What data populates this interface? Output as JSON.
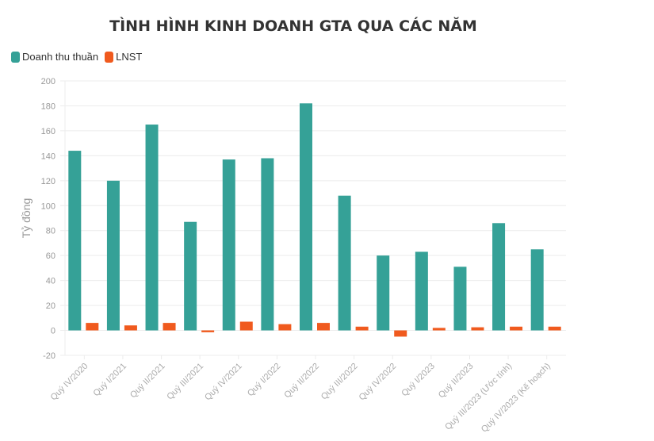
{
  "chart_data": {
    "type": "bar",
    "title": "TÌNH HÌNH KINH DOANH GTA QUA CÁC NĂM",
    "ylabel": "Tỷ đồng",
    "xlabel": "",
    "ylim": [
      -20,
      200
    ],
    "yticks": [
      -20,
      0,
      20,
      40,
      60,
      80,
      100,
      120,
      140,
      160,
      180,
      200
    ],
    "grid": true,
    "legend_position": "top-left",
    "categories": [
      "Quý IV/2020",
      "Quý I/2021",
      "Quý II/2021",
      "Quý III/2021",
      "Quý IV/2021",
      "Quý I/2022",
      "Quý II/2022",
      "Quý III/2022",
      "Quý IV/2022",
      "Quý I/2023",
      "Quý II/2023",
      "Quý III/2023 (Ước tính)",
      "Quý IV/2023 (Kế hoạch)"
    ],
    "series": [
      {
        "name": "Doanh thu thuần",
        "color": "#35a197",
        "values": [
          144,
          120,
          165,
          87,
          137,
          138,
          182,
          108,
          60,
          63,
          51,
          86,
          65
        ]
      },
      {
        "name": "LNST",
        "color": "#f05a1e",
        "values": [
          6,
          4,
          6,
          -1.5,
          7,
          5,
          6,
          3,
          -5,
          2,
          2.5,
          3,
          3
        ]
      }
    ]
  }
}
